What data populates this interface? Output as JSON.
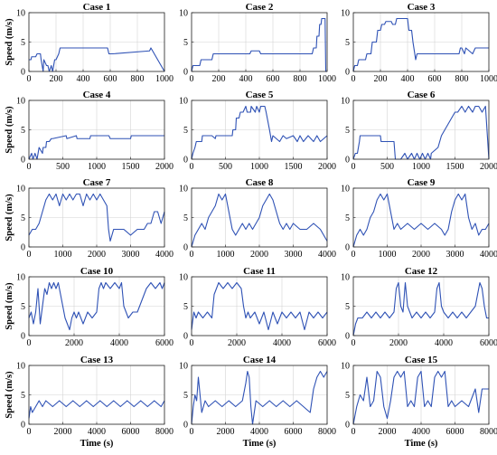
{
  "chart_data": [
    {
      "type": "line",
      "title": "Case 1",
      "xlim": [
        0,
        1000
      ],
      "xticks": [
        0,
        200,
        400,
        600,
        800,
        1000
      ],
      "ylim": [
        0,
        10
      ],
      "yticks": [
        0,
        5,
        10
      ],
      "ylabel": "Speed (m/s)",
      "xlabel": "",
      "grid": true,
      "x": [
        0,
        15,
        20,
        50,
        60,
        85,
        90,
        105,
        110,
        130,
        140,
        150,
        165,
        175,
        190,
        200,
        220,
        230,
        580,
        590,
        620,
        890,
        900,
        1000
      ],
      "y": [
        2,
        2,
        2.5,
        2.5,
        3,
        3,
        2,
        0,
        2,
        1,
        1,
        0,
        1,
        0,
        2,
        2,
        3,
        4,
        4,
        3,
        3,
        3.5,
        4,
        0
      ]
    },
    {
      "type": "line",
      "title": "Case 2",
      "xlim": [
        0,
        1000
      ],
      "xticks": [
        0,
        200,
        400,
        600,
        800,
        1000
      ],
      "ylim": [
        0,
        10
      ],
      "yticks": [
        0,
        5,
        10
      ],
      "ylabel": "",
      "xlabel": "",
      "grid": true,
      "x": [
        0,
        10,
        60,
        70,
        150,
        160,
        430,
        440,
        500,
        510,
        890,
        900,
        920,
        925,
        940,
        945,
        955,
        960,
        985,
        990,
        1000
      ],
      "y": [
        0,
        1,
        1,
        2,
        2,
        3,
        3,
        3.5,
        3.5,
        3,
        3,
        4,
        4,
        6,
        6,
        8,
        8,
        9,
        9,
        0,
        0
      ]
    },
    {
      "type": "line",
      "title": "Case 3",
      "xlim": [
        0,
        1000
      ],
      "xticks": [
        0,
        200,
        400,
        600,
        800,
        1000
      ],
      "ylim": [
        0,
        10
      ],
      "yticks": [
        0,
        5,
        10
      ],
      "ylabel": "",
      "xlabel": "",
      "grid": true,
      "x": [
        0,
        10,
        30,
        40,
        90,
        100,
        130,
        140,
        170,
        180,
        200,
        210,
        230,
        240,
        280,
        290,
        310,
        320,
        400,
        410,
        430,
        440,
        460,
        470,
        780,
        790,
        800,
        820,
        830,
        880,
        900,
        1000
      ],
      "y": [
        0,
        1,
        1,
        2,
        2,
        3,
        3,
        5,
        5,
        7,
        7,
        8,
        8,
        8.5,
        8.5,
        8,
        8,
        9,
        9,
        7,
        7,
        5,
        2,
        3,
        3,
        4,
        4,
        3,
        4,
        3,
        4,
        4
      ]
    },
    {
      "type": "line",
      "title": "Case 4",
      "xlim": [
        0,
        2000
      ],
      "xticks": [
        0,
        500,
        1000,
        1500,
        2000
      ],
      "ylim": [
        0,
        10
      ],
      "yticks": [
        0,
        5,
        10
      ],
      "ylabel": "Speed (m/s)",
      "xlabel": "",
      "grid": true,
      "x": [
        0,
        40,
        60,
        90,
        120,
        150,
        200,
        210,
        250,
        260,
        300,
        330,
        350,
        550,
        560,
        700,
        710,
        900,
        910,
        1180,
        1200,
        1400,
        1500,
        1510,
        2000
      ],
      "y": [
        0,
        1,
        0,
        1,
        0,
        2,
        1,
        2,
        2,
        3,
        3,
        3.5,
        3.5,
        4,
        3.5,
        4,
        3.5,
        3.5,
        4,
        4,
        3.5,
        3.5,
        3.5,
        4,
        4
      ]
    },
    {
      "type": "line",
      "title": "Case 5",
      "xlim": [
        0,
        2000
      ],
      "xticks": [
        0,
        500,
        1000,
        1500,
        2000
      ],
      "ylim": [
        0,
        10
      ],
      "yticks": [
        0,
        5,
        10
      ],
      "ylabel": "",
      "xlabel": "",
      "grid": true,
      "x": [
        0,
        20,
        50,
        70,
        150,
        160,
        300,
        350,
        360,
        600,
        610,
        650,
        660,
        700,
        720,
        760,
        800,
        820,
        870,
        880,
        940,
        960,
        1000,
        1020,
        1080,
        1100,
        1150,
        1180,
        1200,
        1300,
        1350,
        1400,
        1500,
        1560,
        1600,
        1650,
        1720,
        1800,
        1850,
        1900,
        2000
      ],
      "y": [
        0,
        1,
        2,
        3,
        3,
        4,
        4,
        3.5,
        4,
        4,
        5,
        5,
        7,
        7,
        8,
        8,
        9,
        8,
        8,
        9,
        8,
        9,
        8,
        9,
        9,
        8,
        5,
        3,
        4,
        3,
        4,
        3.5,
        4,
        3,
        4,
        3,
        4,
        3,
        4,
        3,
        4
      ]
    },
    {
      "type": "line",
      "title": "Case 6",
      "xlim": [
        0,
        2000
      ],
      "xticks": [
        0,
        500,
        1000,
        1500,
        2000
      ],
      "ylim": [
        0,
        10
      ],
      "yticks": [
        0,
        5,
        10
      ],
      "ylabel": "",
      "xlabel": "",
      "grid": true,
      "x": [
        0,
        30,
        60,
        90,
        100,
        400,
        410,
        600,
        620,
        700,
        760,
        800,
        860,
        900,
        940,
        980,
        1020,
        1060,
        1100,
        1140,
        1150,
        1250,
        1300,
        1350,
        1400,
        1450,
        1500,
        1540,
        1600,
        1650,
        1700,
        1760,
        1800,
        1850,
        1900,
        1950,
        2000
      ],
      "y": [
        0,
        1,
        1,
        3,
        4,
        4,
        3,
        3,
        0,
        0,
        1,
        0,
        1,
        0,
        1,
        0,
        1,
        0,
        1,
        0,
        1,
        2,
        4,
        5,
        6,
        7,
        8,
        8,
        9,
        8,
        9,
        8,
        9,
        9,
        8,
        9,
        0
      ]
    },
    {
      "type": "line",
      "title": "Case 7",
      "xlim": [
        0,
        4000
      ],
      "xticks": [
        0,
        1000,
        2000,
        3000,
        4000
      ],
      "ylim": [
        0,
        10
      ],
      "yticks": [
        0,
        5,
        10
      ],
      "ylabel": "Speed (m/s)",
      "xlabel": "",
      "grid": true,
      "x": [
        0,
        100,
        200,
        300,
        400,
        450,
        500,
        600,
        700,
        800,
        900,
        1000,
        1100,
        1200,
        1300,
        1400,
        1500,
        1600,
        1700,
        1800,
        1900,
        2000,
        2100,
        2200,
        2300,
        2350,
        2400,
        2500,
        2600,
        2800,
        3000,
        3200,
        3400,
        3500,
        3600,
        3700,
        3800,
        3900,
        4000
      ],
      "y": [
        2,
        3,
        3,
        4,
        6,
        7,
        8,
        9,
        8,
        9,
        7,
        9,
        8,
        9,
        8,
        9,
        9,
        7,
        9,
        8,
        9,
        8,
        9,
        8,
        7,
        3,
        1,
        3,
        3,
        3,
        2,
        3,
        3,
        4,
        4,
        6,
        6,
        4,
        6
      ]
    },
    {
      "type": "line",
      "title": "Case 8",
      "xlim": [
        0,
        4000
      ],
      "xticks": [
        0,
        1000,
        2000,
        3000,
        4000
      ],
      "ylim": [
        0,
        10
      ],
      "yticks": [
        0,
        5,
        10
      ],
      "ylabel": "",
      "xlabel": "",
      "grid": true,
      "x": [
        0,
        100,
        200,
        300,
        400,
        500,
        600,
        700,
        800,
        900,
        1000,
        1100,
        1200,
        1300,
        1400,
        1500,
        1600,
        1700,
        1800,
        1900,
        2000,
        2100,
        2200,
        2300,
        2400,
        2500,
        2600,
        2700,
        2800,
        2900,
        3000,
        3200,
        3400,
        3600,
        3800,
        4000
      ],
      "y": [
        0,
        2,
        3,
        4,
        3,
        5,
        6,
        7,
        9,
        8,
        9,
        6,
        3,
        2,
        3,
        4,
        3,
        4,
        3,
        4,
        5,
        7,
        8,
        9,
        8,
        6,
        4,
        3,
        4,
        3,
        4,
        3,
        3,
        4,
        3,
        1
      ]
    },
    {
      "type": "line",
      "title": "Case 9",
      "xlim": [
        0,
        4000
      ],
      "xticks": [
        0,
        1000,
        2000,
        3000,
        4000
      ],
      "ylim": [
        0,
        10
      ],
      "yticks": [
        0,
        5,
        10
      ],
      "ylabel": "",
      "xlabel": "",
      "grid": true,
      "x": [
        0,
        100,
        200,
        300,
        400,
        500,
        600,
        700,
        800,
        900,
        1000,
        1100,
        1200,
        1300,
        1400,
        1600,
        1800,
        2000,
        2200,
        2400,
        2600,
        2700,
        2800,
        2900,
        3000,
        3100,
        3200,
        3300,
        3400,
        3500,
        3600,
        3700,
        3800,
        3900,
        4000
      ],
      "y": [
        0,
        2,
        3,
        2,
        3,
        5,
        6,
        8,
        9,
        8,
        9,
        6,
        3,
        4,
        3,
        4,
        3,
        4,
        3,
        4,
        3,
        2,
        3,
        6,
        8,
        9,
        8,
        9,
        5,
        3,
        4,
        2,
        3,
        3,
        4
      ]
    },
    {
      "type": "line",
      "title": "Case 10",
      "xlim": [
        0,
        6000
      ],
      "xticks": [
        0,
        2000,
        4000,
        6000
      ],
      "ylim": [
        0,
        10
      ],
      "yticks": [
        0,
        5,
        10
      ],
      "ylabel": "Speed (m/s)",
      "xlabel": "",
      "grid": true,
      "x": [
        0,
        100,
        200,
        300,
        400,
        500,
        600,
        700,
        800,
        900,
        1000,
        1100,
        1200,
        1300,
        1400,
        1600,
        1800,
        1900,
        2000,
        2100,
        2200,
        2400,
        2600,
        2800,
        3000,
        3100,
        3200,
        3300,
        3400,
        3600,
        3800,
        4000,
        4100,
        4200,
        4400,
        4600,
        4800,
        5000,
        5200,
        5400,
        5600,
        5800,
        5900,
        6000
      ],
      "y": [
        3,
        4,
        2,
        4,
        8,
        2,
        5,
        8,
        7,
        9,
        8,
        9,
        8,
        9,
        7,
        3,
        1,
        3,
        4,
        3,
        4,
        2,
        4,
        3,
        4,
        8,
        9,
        8,
        9,
        8,
        9,
        8,
        9,
        5,
        3,
        4,
        4,
        6,
        8,
        9,
        8,
        9,
        8,
        9
      ]
    },
    {
      "type": "line",
      "title": "Case 11",
      "xlim": [
        0,
        6000
      ],
      "xticks": [
        0,
        2000,
        4000,
        6000
      ],
      "ylim": [
        0,
        10
      ],
      "yticks": [
        0,
        5,
        10
      ],
      "ylabel": "",
      "xlabel": "",
      "grid": true,
      "x": [
        0,
        100,
        200,
        300,
        500,
        700,
        900,
        1000,
        1100,
        1200,
        1400,
        1600,
        1800,
        2000,
        2200,
        2300,
        2400,
        2500,
        2600,
        2800,
        3000,
        3200,
        3400,
        3600,
        3800,
        4000,
        4200,
        4400,
        4600,
        4800,
        5000,
        5200,
        5400,
        5600,
        5800,
        6000
      ],
      "y": [
        1,
        4,
        3,
        4,
        3,
        4,
        3,
        7,
        8,
        9,
        8,
        9,
        8,
        9,
        8,
        5,
        3,
        4,
        3,
        4,
        2,
        4,
        1,
        4,
        2,
        4,
        3,
        4,
        3,
        4,
        1,
        4,
        3,
        4,
        3,
        4
      ]
    },
    {
      "type": "line",
      "title": "Case 12",
      "xlim": [
        0,
        6000
      ],
      "xticks": [
        0,
        2000,
        4000,
        6000
      ],
      "ylim": [
        0,
        10
      ],
      "yticks": [
        0,
        5,
        10
      ],
      "ylabel": "",
      "xlabel": "",
      "grid": true,
      "x": [
        0,
        100,
        200,
        400,
        600,
        800,
        1000,
        1200,
        1400,
        1600,
        1800,
        1900,
        2000,
        2100,
        2200,
        2300,
        2400,
        2600,
        2800,
        3000,
        3200,
        3400,
        3600,
        3700,
        3800,
        3900,
        4000,
        4200,
        4400,
        4600,
        4800,
        5000,
        5200,
        5400,
        5600,
        5700,
        5800,
        5900,
        6000
      ],
      "y": [
        0,
        2,
        3,
        3,
        4,
        3,
        4,
        3,
        4,
        3,
        4,
        8,
        9,
        5,
        4,
        9,
        5,
        3,
        4,
        3,
        4,
        3,
        4,
        8,
        9,
        5,
        4,
        3,
        4,
        3,
        4,
        3,
        4,
        5,
        9,
        8,
        5,
        3,
        3
      ]
    },
    {
      "type": "line",
      "title": "Case 13",
      "xlim": [
        0,
        8000
      ],
      "xticks": [
        0,
        2000,
        4000,
        6000,
        8000
      ],
      "ylim": [
        0,
        10
      ],
      "yticks": [
        0,
        5,
        10
      ],
      "ylabel": "Speed (m/s)",
      "xlabel": "Time (s)",
      "grid": true,
      "x": [
        0,
        100,
        200,
        400,
        600,
        800,
        1000,
        1400,
        1800,
        2200,
        2600,
        3000,
        3400,
        3800,
        4200,
        4600,
        5000,
        5400,
        5800,
        6200,
        6600,
        7000,
        7400,
        7800,
        8000
      ],
      "y": [
        1,
        3,
        2,
        3,
        4,
        3,
        4,
        3,
        4,
        3,
        4,
        3,
        4,
        3,
        4,
        3,
        4,
        3,
        4,
        3,
        4,
        3,
        4,
        3,
        4
      ]
    },
    {
      "type": "line",
      "title": "Case 14",
      "xlim": [
        0,
        8000
      ],
      "xticks": [
        0,
        2000,
        4000,
        6000,
        8000
      ],
      "ylim": [
        0,
        10
      ],
      "yticks": [
        0,
        5,
        10
      ],
      "ylabel": "",
      "xlabel": "Time (s)",
      "grid": true,
      "x": [
        0,
        100,
        200,
        300,
        400,
        600,
        800,
        1000,
        1400,
        1800,
        2200,
        2600,
        3000,
        3200,
        3300,
        3400,
        3500,
        3600,
        3800,
        4200,
        4600,
        5000,
        5400,
        5800,
        6200,
        6600,
        7000,
        7200,
        7400,
        7600,
        7800,
        8000
      ],
      "y": [
        0,
        3,
        5,
        4,
        8,
        2,
        4,
        3,
        4,
        3,
        4,
        3,
        4,
        7,
        9,
        8,
        3,
        0,
        4,
        3,
        4,
        3,
        4,
        3,
        4,
        3,
        2,
        6,
        8,
        9,
        8,
        9
      ]
    },
    {
      "type": "line",
      "title": "Case 15",
      "xlim": [
        0,
        8000
      ],
      "xticks": [
        0,
        2000,
        4000,
        6000,
        8000
      ],
      "ylim": [
        0,
        10
      ],
      "yticks": [
        0,
        5,
        10
      ],
      "ylabel": "",
      "xlabel": "Time (s)",
      "grid": true,
      "x": [
        0,
        200,
        400,
        600,
        800,
        1000,
        1200,
        1400,
        1600,
        1800,
        2000,
        2200,
        2400,
        2600,
        2800,
        3000,
        3200,
        3400,
        3600,
        3800,
        4000,
        4200,
        4400,
        4600,
        4800,
        5000,
        5200,
        5400,
        5600,
        5800,
        6000,
        6400,
        6800,
        7200,
        7400,
        7600,
        8000
      ],
      "y": [
        0,
        3,
        5,
        4,
        8,
        3,
        4,
        9,
        8,
        3,
        1,
        4,
        8,
        9,
        8,
        9,
        3,
        4,
        3,
        8,
        9,
        3,
        4,
        3,
        8,
        9,
        8,
        9,
        3,
        4,
        3,
        4,
        3,
        6,
        2,
        6,
        6
      ]
    }
  ]
}
